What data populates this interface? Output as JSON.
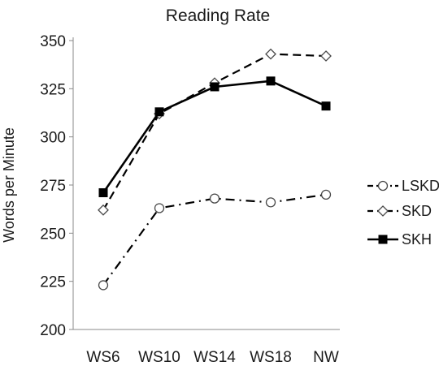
{
  "chart_data": {
    "type": "line",
    "title": "Reading Rate",
    "xlabel": "",
    "ylabel": "Words per Minute",
    "categories": [
      "WS6",
      "WS10",
      "WS14",
      "WS18",
      "NW"
    ],
    "ylim": [
      200,
      350
    ],
    "yticks": [
      200,
      225,
      250,
      275,
      300,
      325,
      350
    ],
    "grid": false,
    "legend_position": "right",
    "series": [
      {
        "name": "LSKD",
        "values": [
          223,
          263,
          268,
          266,
          270
        ],
        "line_style": "dash-dot",
        "marker": "open-circle",
        "color": "#000000"
      },
      {
        "name": "SKD",
        "values": [
          262,
          312,
          328,
          343,
          342
        ],
        "line_style": "dashed",
        "marker": "open-diamond",
        "color": "#000000"
      },
      {
        "name": "SKH",
        "values": [
          271,
          313,
          326,
          329,
          316
        ],
        "line_style": "solid",
        "marker": "filled-square",
        "color": "#000000"
      }
    ]
  }
}
